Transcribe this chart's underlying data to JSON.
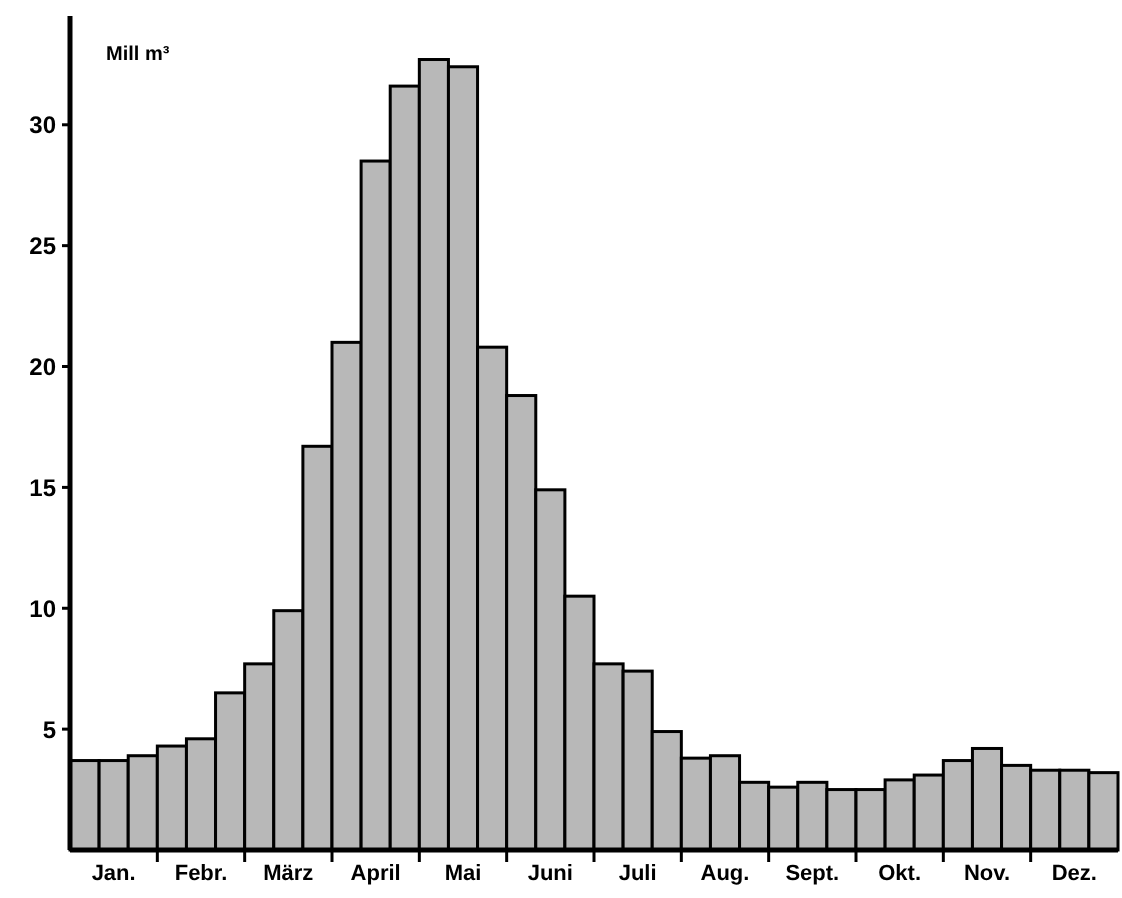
{
  "chart_data": {
    "type": "bar",
    "ylabel": "Mill m³",
    "categories": [
      null,
      "Jan.",
      null,
      null,
      "Febr.",
      null,
      null,
      "März",
      null,
      null,
      "April",
      null,
      null,
      "Mai",
      null,
      null,
      "Juni",
      null,
      null,
      "Juli",
      null,
      null,
      "Aug.",
      null,
      null,
      "Sept.",
      null,
      null,
      "Okt.",
      null,
      null,
      "Nov.",
      null,
      null,
      "Dez.",
      null
    ],
    "values": [
      3.7,
      3.7,
      3.9,
      4.3,
      4.6,
      6.5,
      7.7,
      9.9,
      16.7,
      21.0,
      28.5,
      31.6,
      32.7,
      32.4,
      20.8,
      18.8,
      14.9,
      10.5,
      7.7,
      7.4,
      4.9,
      3.8,
      3.9,
      2.8,
      2.6,
      2.8,
      2.5,
      2.5,
      2.9,
      3.1,
      3.7,
      4.2,
      3.5,
      3.3,
      3.3,
      3.2
    ],
    "color": "#b8b8b8",
    "ylim": [
      0,
      34.5
    ],
    "yticks": [
      5,
      10,
      15,
      20,
      25,
      30
    ],
    "grid": false
  }
}
